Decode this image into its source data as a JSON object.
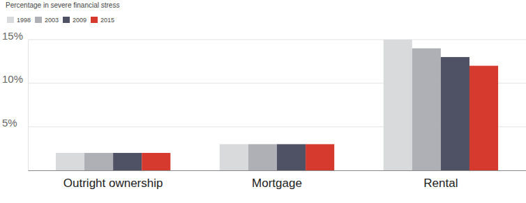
{
  "chart_data": {
    "type": "bar",
    "title": "Percentage in severe financial stress",
    "categories": [
      "Outright ownership",
      "Mortgage",
      "Rental"
    ],
    "series": [
      {
        "name": "1998",
        "color": "#d9dadc",
        "values": [
          2,
          3,
          15
        ]
      },
      {
        "name": "2003",
        "color": "#aeb0b5",
        "values": [
          2,
          3,
          14
        ]
      },
      {
        "name": "2009",
        "color": "#4f5164",
        "values": [
          2,
          3,
          13
        ]
      },
      {
        "name": "2015",
        "color": "#d63a2e",
        "values": [
          2,
          3,
          12
        ]
      }
    ],
    "ylim": [
      0,
      15
    ],
    "yticks": [
      {
        "value": 5,
        "label": "5%"
      },
      {
        "value": 10,
        "label": "10%"
      },
      {
        "value": 15,
        "label": "15%"
      }
    ],
    "grid": true,
    "legend": "top-left"
  }
}
